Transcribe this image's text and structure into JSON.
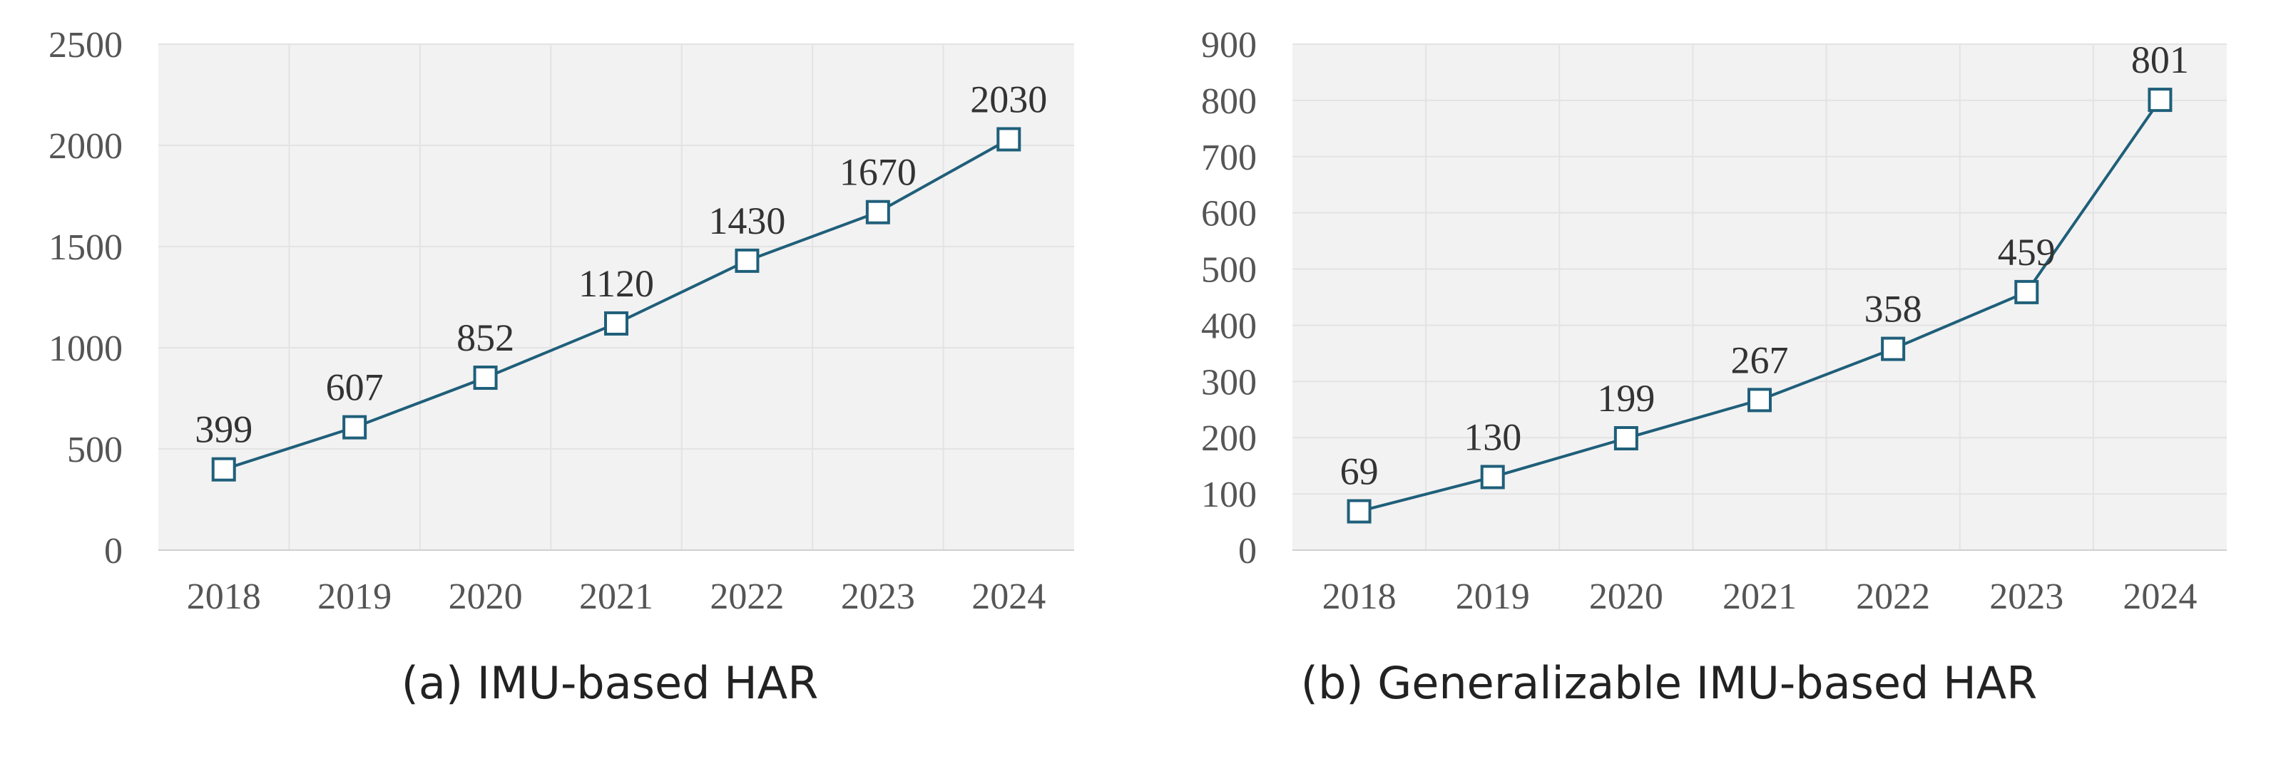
{
  "colors": {
    "line": "#1f5f7a",
    "plot_bg": "#f2f2f2",
    "grid": "#e3e3e3",
    "axis": "#d0d0d0",
    "marker_fill": "#ffffff"
  },
  "chart_data": [
    {
      "type": "line",
      "caption": "(a) IMU-based HAR",
      "categories": [
        "2018",
        "2019",
        "2020",
        "2021",
        "2022",
        "2023",
        "2024"
      ],
      "values": [
        399,
        607,
        852,
        1120,
        1430,
        1670,
        2030
      ],
      "ylim": [
        0,
        2500
      ],
      "yticks": [
        0,
        500,
        1000,
        1500,
        2000,
        2500
      ],
      "grid": true,
      "marker": "square"
    },
    {
      "type": "line",
      "caption": "(b) Generalizable IMU-based HAR",
      "categories": [
        "2018",
        "2019",
        "2020",
        "2021",
        "2022",
        "2023",
        "2024"
      ],
      "values": [
        69,
        130,
        199,
        267,
        358,
        459,
        801
      ],
      "ylim": [
        0,
        900
      ],
      "yticks": [
        0,
        100,
        200,
        300,
        400,
        500,
        600,
        700,
        800,
        900
      ],
      "grid": true,
      "marker": "square"
    }
  ]
}
